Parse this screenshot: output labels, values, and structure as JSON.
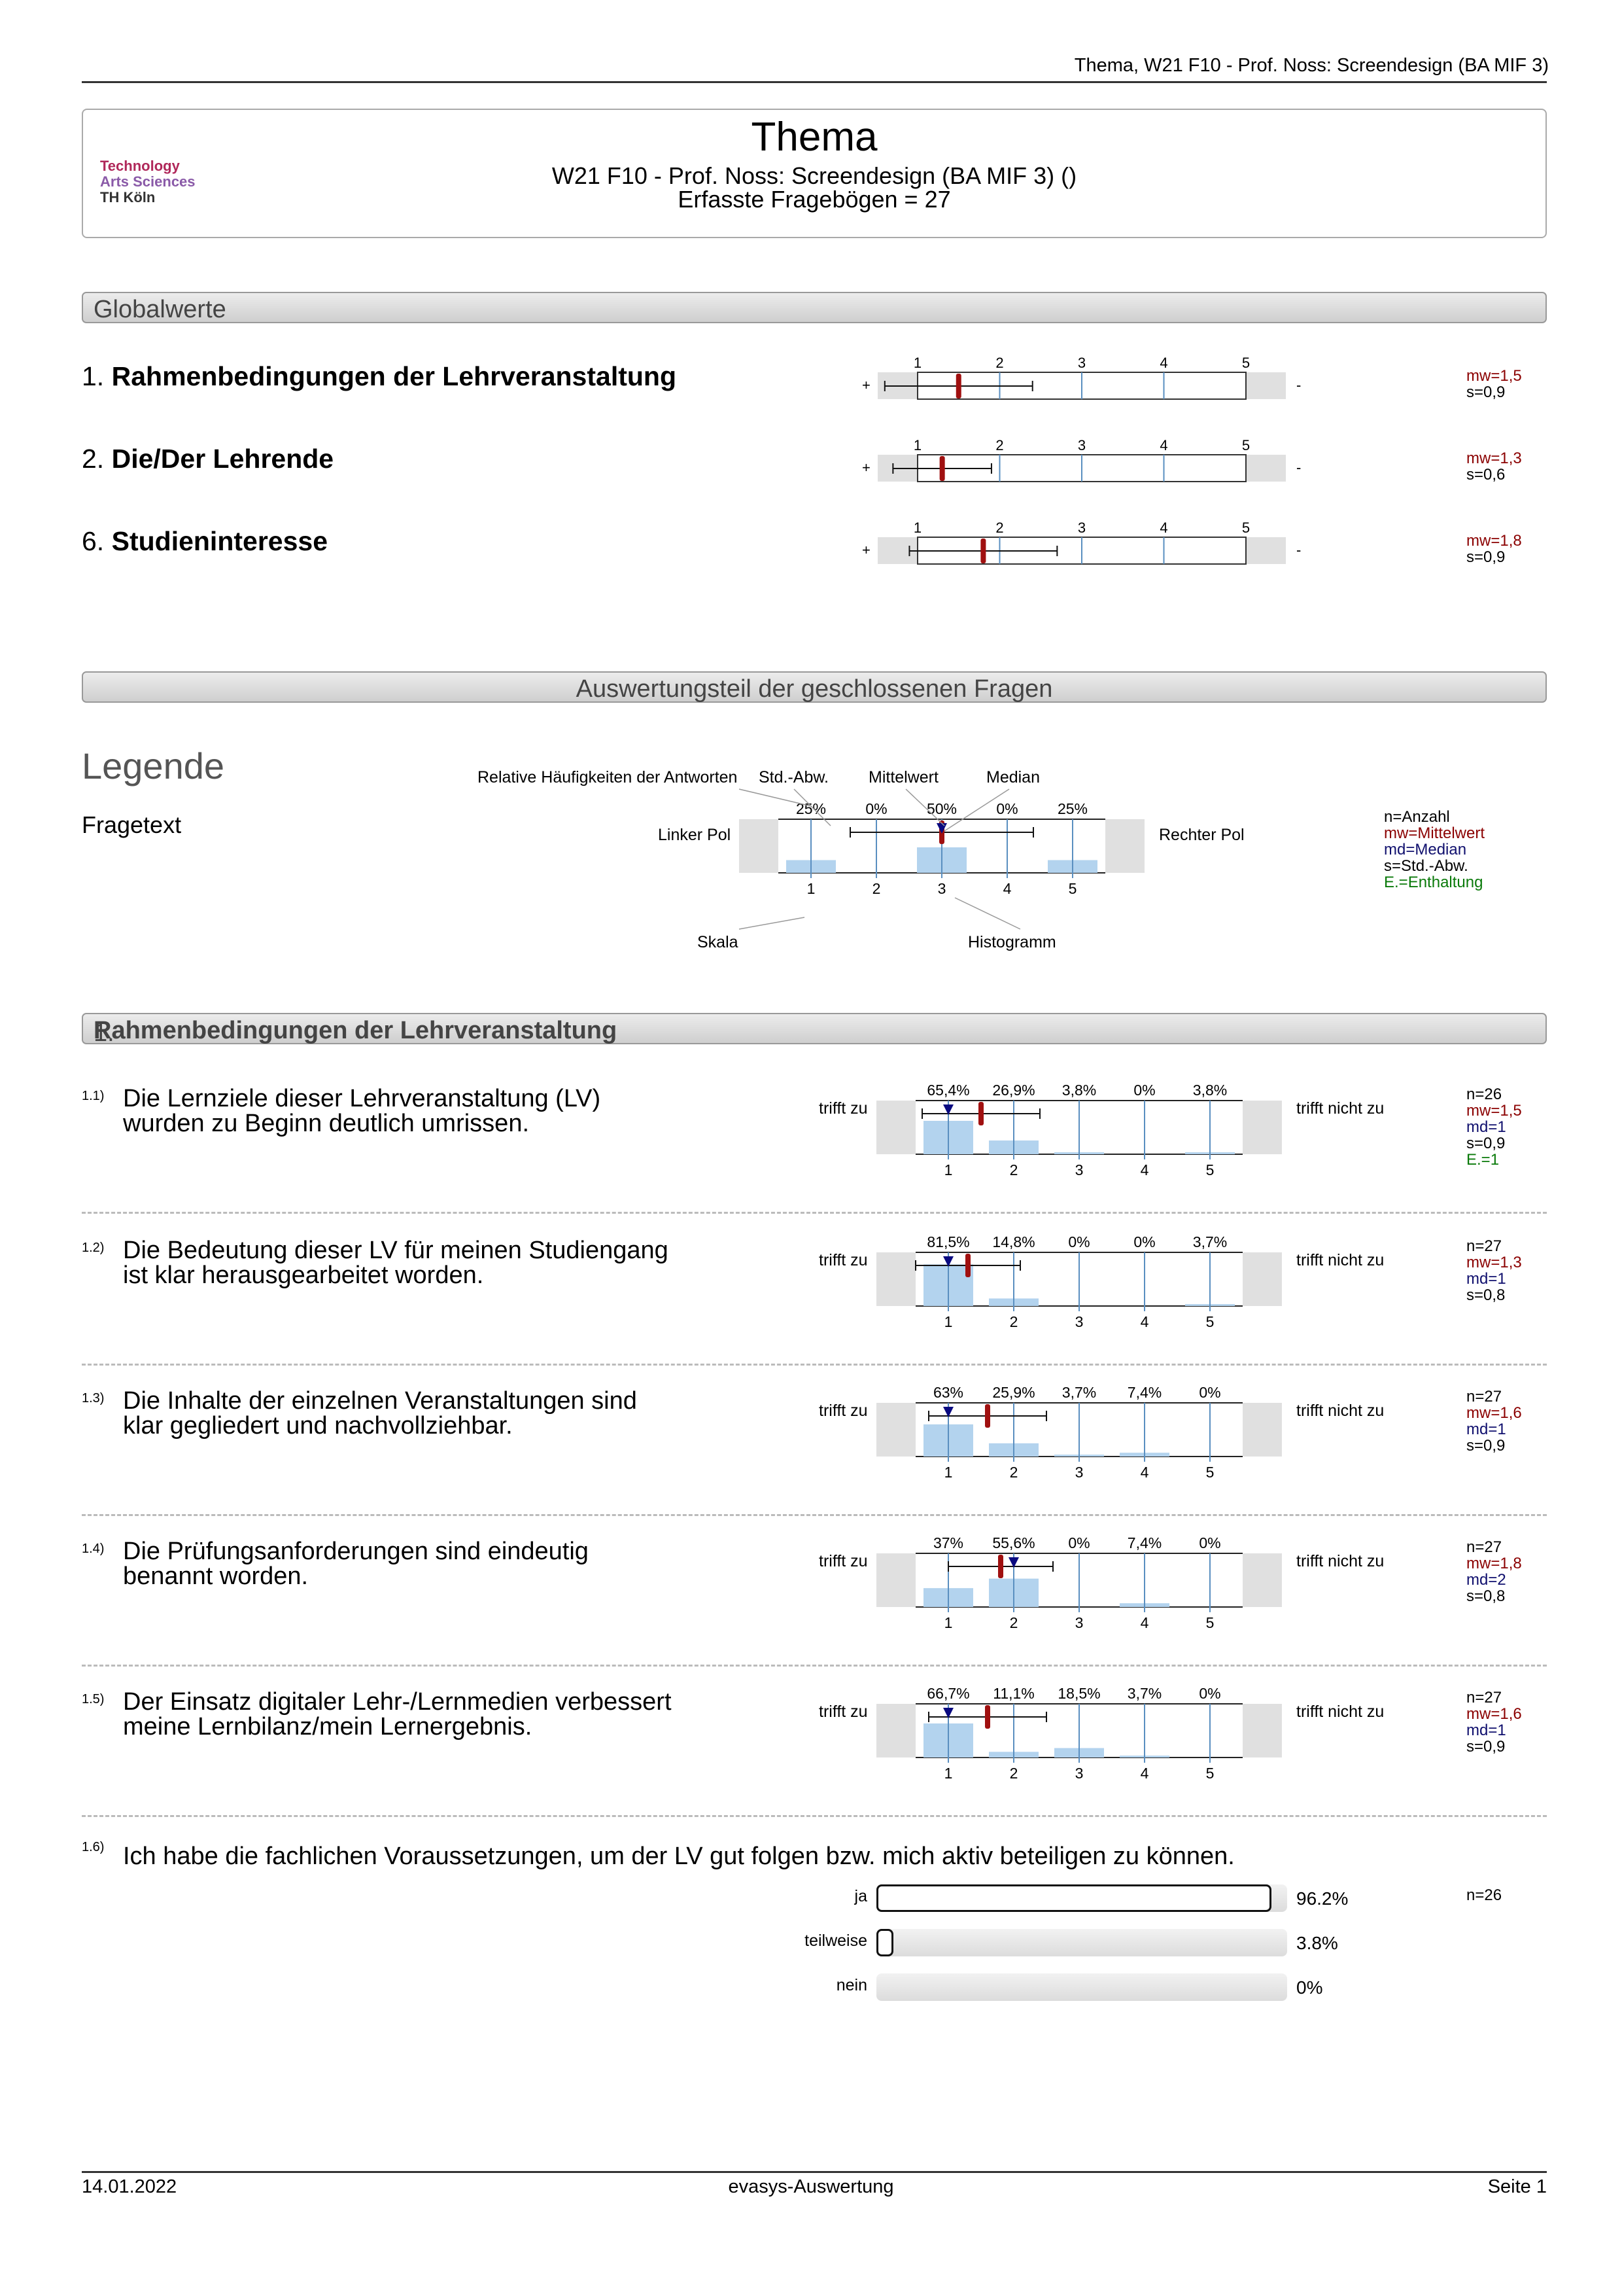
{
  "header": {
    "running_title": "Thema, W21 F10 - Prof. Noss: Screendesign (BA MIF 3)"
  },
  "title_box": {
    "logo_line1": "Technology",
    "logo_line2": "Arts Sciences",
    "logo_line3": "TH Köln",
    "title": "Thema",
    "subtitle": "W21 F10 - Prof. Noss: Screendesign (BA MIF 3) ()",
    "count": "Erfasste Fragebögen = 27"
  },
  "global": {
    "heading": "Globalwerte",
    "rows": [
      {
        "num": "1.",
        "label": "Rahmenbedingungen der Lehrveranstaltung",
        "mean": 1.5,
        "sd": 0.9,
        "mw": "mw=1,5",
        "s": "s=0,9"
      },
      {
        "num": "2.",
        "label": "Die/Der Lehrende",
        "mean": 1.3,
        "sd": 0.6,
        "mw": "mw=1,3",
        "s": "s=0,6"
      },
      {
        "num": "6.",
        "label": "Studieninteresse",
        "mean": 1.8,
        "sd": 0.9,
        "mw": "mw=1,8",
        "s": "s=0,9"
      }
    ],
    "scale_ticks": [
      "1",
      "2",
      "3",
      "4",
      "5"
    ],
    "plus": "+",
    "minus": "-"
  },
  "closed_heading": "Auswertungsteil der geschlossenen Fragen",
  "legend": {
    "title": "Legende",
    "fragetext": "Fragetext",
    "rel_freq": "Relative Häufigkeiten der Antworten",
    "std": "Std.-Abw.",
    "mittelwert": "Mittelwert",
    "median": "Median",
    "left_pole": "Linker Pol",
    "right_pole": "Rechter Pol",
    "skala": "Skala",
    "histogramm": "Histogramm",
    "percents": [
      "25%",
      "0%",
      "50%",
      "0%",
      "25%"
    ],
    "ticks": [
      "1",
      "2",
      "3",
      "4",
      "5"
    ],
    "k_n": "n=Anzahl",
    "k_mw": "mw=Mittelwert",
    "k_md": "md=Median",
    "k_s": "s=Std.-Abw.",
    "k_e": "E.=Enthaltung"
  },
  "section1": {
    "heading_num": "1.",
    "heading": "Rahmenbedingungen der Lehrveranstaltung",
    "left_pole": "trifft zu",
    "right_pole": "trifft nicht zu",
    "questions": [
      {
        "num": "1.1)",
        "line1": "Die Lernziele dieser Lehrveranstaltung (LV)",
        "line2": "wurden zu Beginn deutlich umrissen.",
        "dist": [
          65.4,
          26.9,
          3.8,
          0,
          3.8
        ],
        "pct": [
          "65,4%",
          "26,9%",
          "3,8%",
          "0%",
          "3,8%"
        ],
        "mean": 1.5,
        "median": 1,
        "sd": 0.9,
        "n": "n=26",
        "mw": "mw=1,5",
        "md": "md=1",
        "s": "s=0,9",
        "e": "E.=1"
      },
      {
        "num": "1.2)",
        "line1": "Die Bedeutung dieser LV für meinen Studiengang",
        "line2": "ist klar herausgearbeitet worden.",
        "dist": [
          81.5,
          14.8,
          0,
          0,
          3.7
        ],
        "pct": [
          "81,5%",
          "14,8%",
          "0%",
          "0%",
          "3,7%"
        ],
        "mean": 1.3,
        "median": 1,
        "sd": 0.8,
        "n": "n=27",
        "mw": "mw=1,3",
        "md": "md=1",
        "s": "s=0,8",
        "e": ""
      },
      {
        "num": "1.3)",
        "line1": "Die Inhalte der einzelnen Veranstaltungen sind",
        "line2": "klar gegliedert und nachvollziehbar.",
        "dist": [
          63,
          25.9,
          3.7,
          7.4,
          0
        ],
        "pct": [
          "63%",
          "25,9%",
          "3,7%",
          "7,4%",
          "0%"
        ],
        "mean": 1.6,
        "median": 1,
        "sd": 0.9,
        "n": "n=27",
        "mw": "mw=1,6",
        "md": "md=1",
        "s": "s=0,9",
        "e": ""
      },
      {
        "num": "1.4)",
        "line1": "Die Prüfungsanforderungen sind eindeutig",
        "line2": "benannt worden.",
        "dist": [
          37,
          55.6,
          0,
          7.4,
          0
        ],
        "pct": [
          "37%",
          "55,6%",
          "0%",
          "7,4%",
          "0%"
        ],
        "mean": 1.8,
        "median": 2,
        "sd": 0.8,
        "n": "n=27",
        "mw": "mw=1,8",
        "md": "md=2",
        "s": "s=0,8",
        "e": ""
      },
      {
        "num": "1.5)",
        "line1": "Der Einsatz digitaler Lehr-/Lernmedien verbessert",
        "line2": "meine Lernbilanz/mein Lernergebnis.",
        "dist": [
          66.7,
          11.1,
          18.5,
          3.7,
          0
        ],
        "pct": [
          "66,7%",
          "11,1%",
          "18,5%",
          "3,7%",
          "0%"
        ],
        "mean": 1.6,
        "median": 1,
        "sd": 0.9,
        "n": "n=27",
        "mw": "mw=1,6",
        "md": "md=1",
        "s": "s=0,9",
        "e": ""
      }
    ],
    "q16": {
      "num": "1.6)",
      "text": "Ich habe die fachlichen Voraussetzungen, um der LV gut folgen bzw. mich aktiv beteiligen zu können.",
      "n": "n=26",
      "options": [
        {
          "label": "ja",
          "value": 96.2,
          "pct": "96.2%"
        },
        {
          "label": "teilweise",
          "value": 3.8,
          "pct": "3.8%"
        },
        {
          "label": "nein",
          "value": 0,
          "pct": "0%"
        }
      ]
    },
    "ticks": [
      "1",
      "2",
      "3",
      "4",
      "5"
    ]
  },
  "footer": {
    "date": "14.01.2022",
    "center": "evasys-Auswertung",
    "page": "Seite 1"
  },
  "colors": {
    "mean": "#a01010",
    "median": "#0a0a80",
    "bar": "#b3d3ee",
    "axis": "#5a8fc0",
    "enth": "#0a7a0a"
  }
}
